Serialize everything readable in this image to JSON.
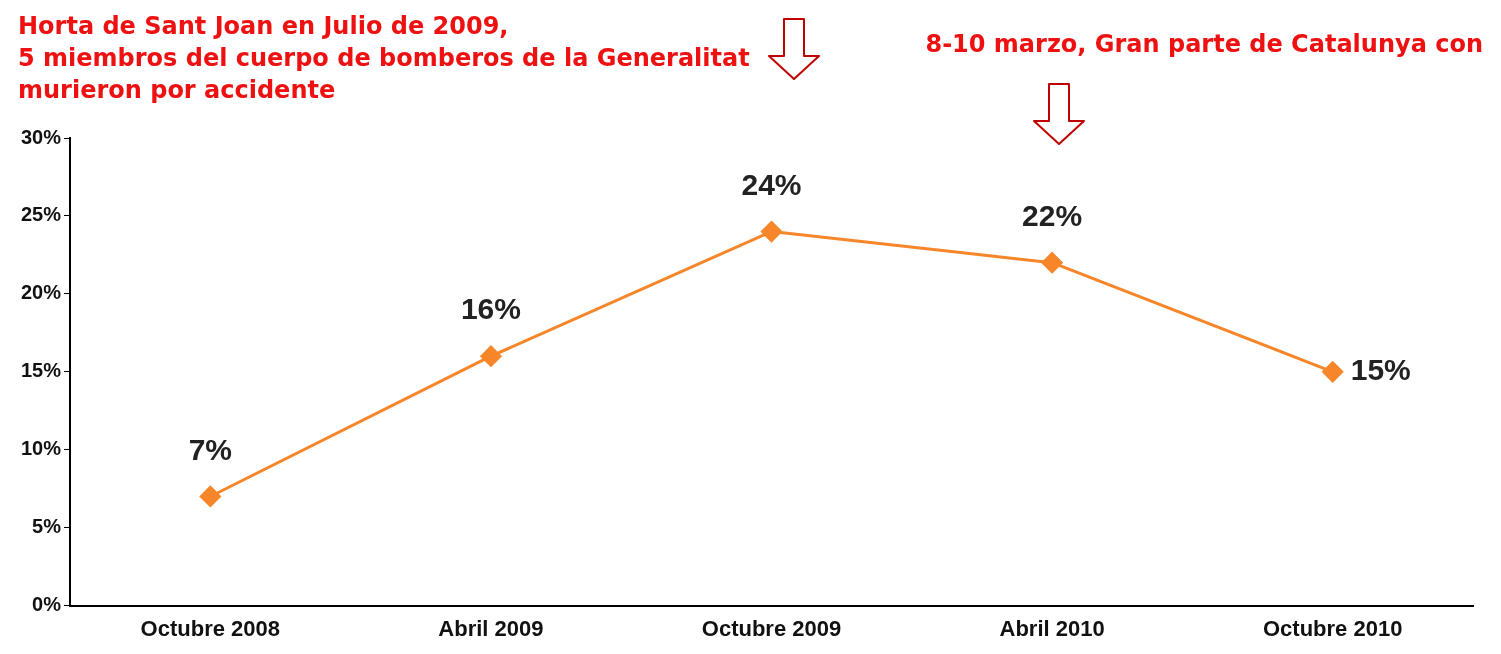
{
  "chart_data": {
    "type": "line",
    "categories": [
      "Octubre 2008",
      "Abril 2009",
      "Octubre 2009",
      "Abril 2010",
      "Octubre 2010"
    ],
    "values": [
      7,
      16,
      24,
      22,
      15
    ],
    "value_labels": [
      "7%",
      "16%",
      "24%",
      "22%",
      "15%"
    ],
    "color": "#f7862a",
    "marker": "diamond",
    "line_style": "solid",
    "grid": false,
    "legend": false,
    "ylim": [
      0,
      30
    ],
    "yticks": [
      {
        "value": 0,
        "label": "0%"
      },
      {
        "value": 5,
        "label": "5%"
      },
      {
        "value": 10,
        "label": "10%"
      },
      {
        "value": 15,
        "label": "15%"
      },
      {
        "value": 20,
        "label": "20%"
      },
      {
        "value": 25,
        "label": "25%"
      },
      {
        "value": 30,
        "label": "30%"
      }
    ],
    "annotations": [
      "Horta de Sant Joan en Julio de 2009,\n5 miembros del cuerpo de bomberos de la Generalitat\nmurieron por accidente",
      "8-10 marzo, Gran parte de Catalunya con"
    ]
  }
}
